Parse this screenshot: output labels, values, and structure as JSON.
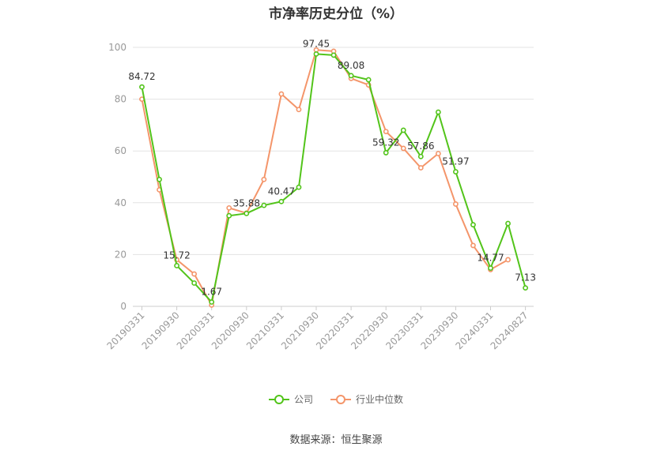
{
  "chart_data": {
    "type": "line",
    "title": "市净率历史分位（%）",
    "x": [
      "20190331",
      "20190630",
      "20190930",
      "20191231",
      "20200331",
      "20200630",
      "20200930",
      "20201231",
      "20210331",
      "20210630",
      "20210930",
      "20211231",
      "20220331",
      "20220630",
      "20220930",
      "20221231",
      "20230331",
      "20230630",
      "20230930",
      "20231231",
      "20240331",
      "20240630",
      "20240827"
    ],
    "x_tick_labels": [
      "20190331",
      "20190930",
      "20200331",
      "20200930",
      "20210331",
      "20210930",
      "20220331",
      "20220930",
      "20230331",
      "20230930",
      "20240331",
      "20240827"
    ],
    "ylim": [
      0,
      100
    ],
    "y_ticks": [
      0,
      20,
      40,
      60,
      80,
      100
    ],
    "grid": true,
    "legend_position": "bottom",
    "series": [
      {
        "name": "公司",
        "color": "#52c41a",
        "values": [
          84.72,
          49,
          15.72,
          9,
          1.67,
          35,
          35.88,
          39,
          40.47,
          46,
          97.45,
          97,
          89.08,
          87.5,
          59.32,
          68,
          57.86,
          75,
          51.97,
          31.5,
          14.77,
          32,
          7.13
        ],
        "data_labels": [
          {
            "index": 0,
            "text": "84.72"
          },
          {
            "index": 2,
            "text": "15.72"
          },
          {
            "index": 4,
            "text": "1.67"
          },
          {
            "index": 6,
            "text": "35.88"
          },
          {
            "index": 8,
            "text": "40.47"
          },
          {
            "index": 10,
            "text": "97.45"
          },
          {
            "index": 12,
            "text": "89.08"
          },
          {
            "index": 14,
            "text": "59.32"
          },
          {
            "index": 16,
            "text": "57.86"
          },
          {
            "index": 18,
            "text": "51.97"
          },
          {
            "index": 20,
            "text": "14.77"
          },
          {
            "index": 22,
            "text": "7.13"
          }
        ]
      },
      {
        "name": "行业中位数",
        "color": "#f4956a",
        "values": [
          80,
          45,
          18,
          12.5,
          0.5,
          38,
          36,
          49,
          82,
          76,
          99,
          98.5,
          88,
          85.5,
          67.5,
          61,
          53.5,
          59,
          39.5,
          23.5,
          14.2,
          18,
          null
        ]
      }
    ]
  },
  "source": "数据来源：恒生聚源"
}
